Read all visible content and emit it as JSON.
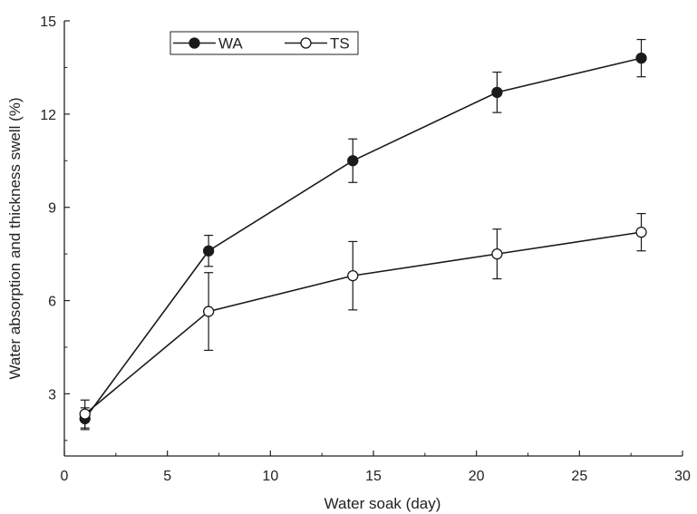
{
  "chart_data": {
    "type": "line",
    "title": "",
    "xlabel": "Water soak (day)",
    "ylabel": "Water absorption and thickness swell (%)",
    "xlim": [
      0,
      30
    ],
    "ylim": [
      1,
      15
    ],
    "xticks": [
      0,
      5,
      10,
      15,
      20,
      25,
      30
    ],
    "yticks": [
      3,
      6,
      9,
      12,
      15
    ],
    "x": [
      1,
      7,
      14,
      21,
      28
    ],
    "grid": false,
    "legend_position": "top-left",
    "series": [
      {
        "name": "WA",
        "marker": "filled-circle",
        "color": "#1a1a1a",
        "values": [
          2.2,
          7.6,
          10.5,
          12.7,
          13.8
        ],
        "error": [
          0.35,
          0.5,
          0.7,
          0.65,
          0.6
        ]
      },
      {
        "name": "TS",
        "marker": "open-circle",
        "color": "#1a1a1a",
        "values": [
          2.35,
          5.65,
          6.8,
          7.5,
          8.2
        ],
        "error": [
          0.45,
          1.25,
          1.1,
          0.8,
          0.6
        ]
      }
    ]
  }
}
